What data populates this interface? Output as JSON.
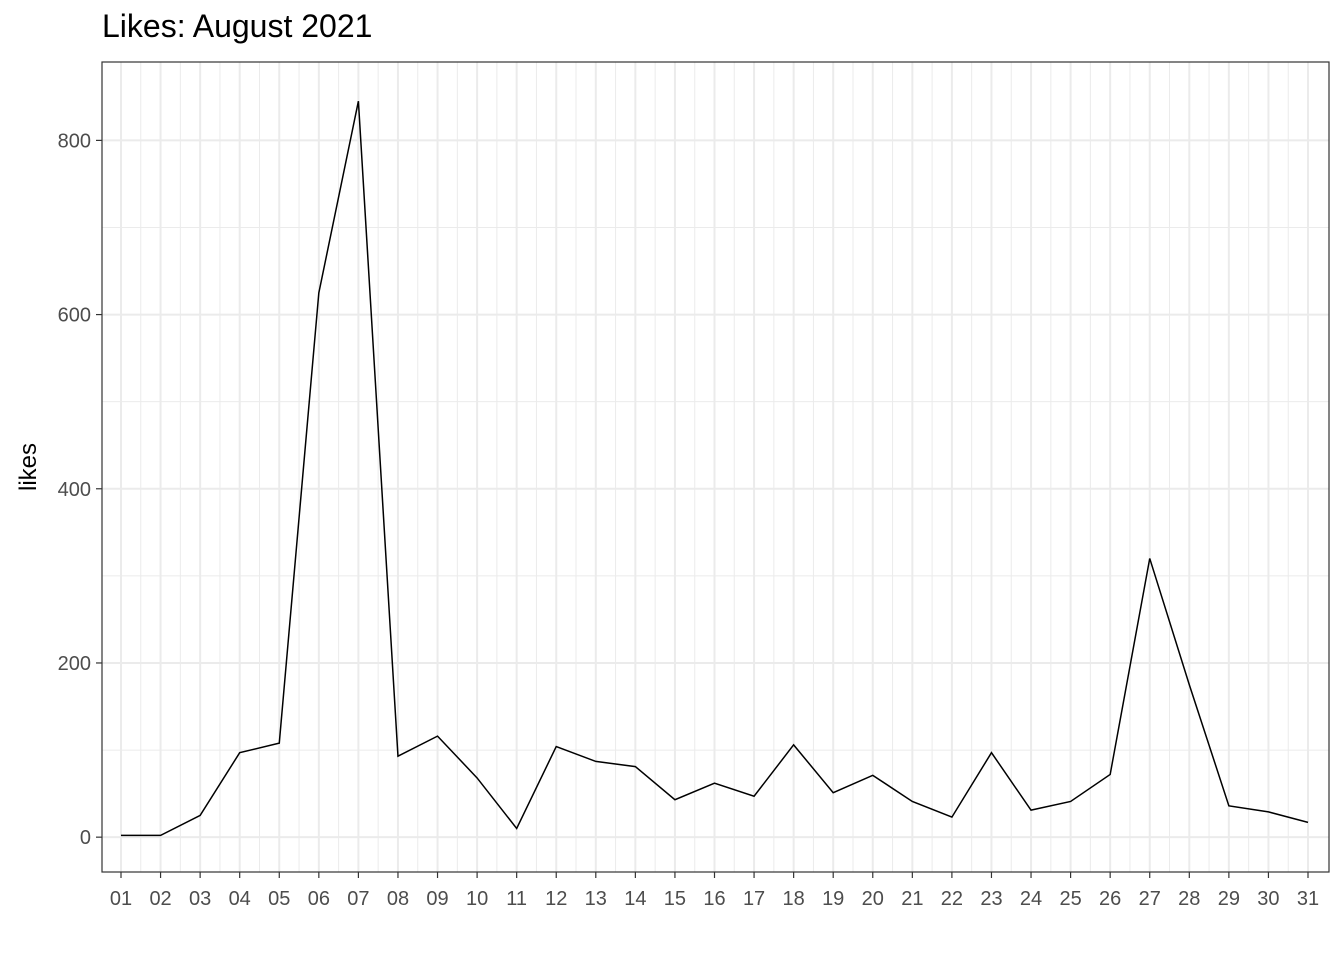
{
  "chart_data": {
    "type": "line",
    "title": "Likes: August 2021",
    "xlabel": "",
    "ylabel": "likes",
    "x": [
      "01",
      "02",
      "03",
      "04",
      "05",
      "06",
      "07",
      "08",
      "09",
      "10",
      "11",
      "12",
      "13",
      "14",
      "15",
      "16",
      "17",
      "18",
      "19",
      "20",
      "21",
      "22",
      "23",
      "24",
      "25",
      "26",
      "27",
      "28",
      "29",
      "30",
      "31"
    ],
    "series": [
      {
        "values": [
          2,
          2,
          25,
          97,
          108,
          625,
          845,
          93,
          116,
          68,
          10,
          104,
          87,
          81,
          43,
          62,
          47,
          106,
          51,
          71,
          41,
          23,
          97,
          31,
          41,
          72,
          320,
          175,
          36,
          29,
          17
        ],
        "color": "#000000"
      }
    ],
    "ylim": [
      -40,
      890
    ],
    "yticks": [
      0,
      200,
      400,
      600,
      800
    ],
    "grid": true,
    "legend": "none",
    "colors": {
      "grid": "#ebebeb",
      "panel_border": "#333333",
      "tick_label": "#4d4d4d"
    }
  }
}
